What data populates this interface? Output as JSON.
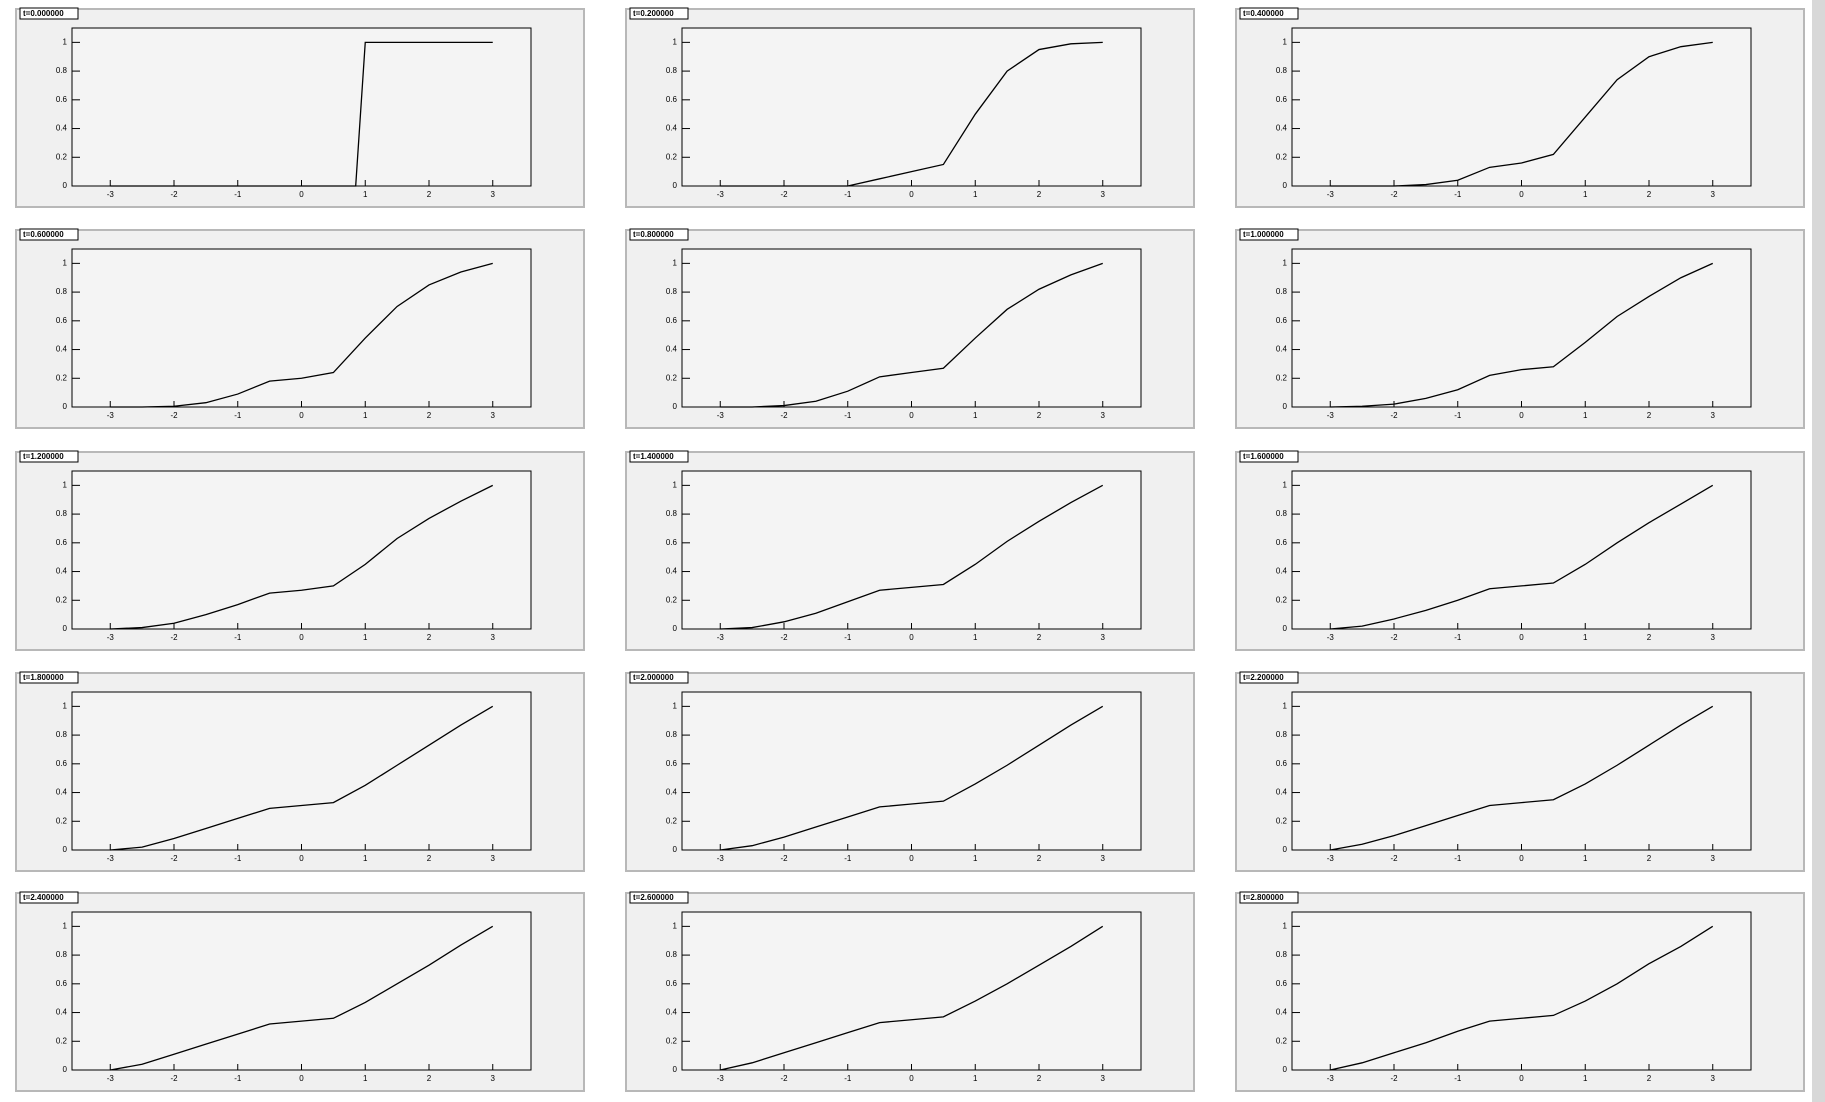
{
  "chart_data": [
    {
      "type": "line",
      "title": "t=0.000000",
      "x": [
        -3,
        0.85,
        1,
        3
      ],
      "values": [
        0,
        0,
        1,
        1
      ],
      "xlim": [
        -3.6,
        3.6
      ],
      "ylim": [
        0,
        1.1
      ],
      "xticks": [
        -3,
        -2,
        -1,
        0,
        1,
        2,
        3
      ],
      "yticks": [
        0,
        0.2,
        0.4,
        0.6,
        0.8,
        1
      ],
      "color": "#000000"
    },
    {
      "type": "line",
      "title": "t=0.200000",
      "x": [
        -3,
        -2.5,
        -2,
        -1.5,
        -1,
        -0.5,
        0,
        0.5,
        1,
        1.5,
        2,
        2.5,
        3
      ],
      "values": [
        0,
        0,
        0,
        0,
        0,
        0.05,
        0.1,
        0.15,
        0.5,
        0.8,
        0.95,
        0.99,
        1
      ],
      "xlim": [
        -3.6,
        3.6
      ],
      "ylim": [
        0,
        1.1
      ],
      "xticks": [
        -3,
        -2,
        -1,
        0,
        1,
        2,
        3
      ],
      "yticks": [
        0,
        0.2,
        0.4,
        0.6,
        0.8,
        1
      ],
      "color": "#000000"
    },
    {
      "type": "line",
      "title": "t=0.400000",
      "x": [
        -3,
        -2.5,
        -2,
        -1.5,
        -1,
        -0.5,
        0,
        0.5,
        1,
        1.5,
        2,
        2.5,
        3
      ],
      "values": [
        0,
        0,
        0,
        0.01,
        0.04,
        0.13,
        0.16,
        0.22,
        0.48,
        0.74,
        0.9,
        0.97,
        1
      ],
      "xlim": [
        -3.6,
        3.6
      ],
      "ylim": [
        0,
        1.1
      ],
      "xticks": [
        -3,
        -2,
        -1,
        0,
        1,
        2,
        3
      ],
      "yticks": [
        0,
        0.2,
        0.4,
        0.6,
        0.8,
        1
      ],
      "color": "#000000"
    },
    {
      "type": "line",
      "title": "t=0.600000",
      "x": [
        -3,
        -2.5,
        -2,
        -1.5,
        -1,
        -0.5,
        0,
        0.5,
        1,
        1.5,
        2,
        2.5,
        3
      ],
      "values": [
        0,
        0,
        0.005,
        0.03,
        0.09,
        0.18,
        0.2,
        0.24,
        0.48,
        0.7,
        0.85,
        0.94,
        1
      ],
      "xlim": [
        -3.6,
        3.6
      ],
      "ylim": [
        0,
        1.1
      ],
      "xticks": [
        -3,
        -2,
        -1,
        0,
        1,
        2,
        3
      ],
      "yticks": [
        0,
        0.2,
        0.4,
        0.6,
        0.8,
        1
      ],
      "color": "#000000"
    },
    {
      "type": "line",
      "title": "t=0.800000",
      "x": [
        -3,
        -2.5,
        -2,
        -1.5,
        -1,
        -0.5,
        0,
        0.5,
        1,
        1.5,
        2,
        2.5,
        3
      ],
      "values": [
        0,
        0,
        0.01,
        0.04,
        0.11,
        0.21,
        0.24,
        0.27,
        0.48,
        0.68,
        0.82,
        0.92,
        1
      ],
      "xlim": [
        -3.6,
        3.6
      ],
      "ylim": [
        0,
        1.1
      ],
      "xticks": [
        -3,
        -2,
        -1,
        0,
        1,
        2,
        3
      ],
      "yticks": [
        0,
        0.2,
        0.4,
        0.6,
        0.8,
        1
      ],
      "color": "#000000"
    },
    {
      "type": "line",
      "title": "t=1.000000",
      "x": [
        -3,
        -2.5,
        -2,
        -1.5,
        -1,
        -0.5,
        0,
        0.5,
        1,
        1.5,
        2,
        2.5,
        3
      ],
      "values": [
        0,
        0.005,
        0.02,
        0.06,
        0.12,
        0.22,
        0.26,
        0.28,
        0.45,
        0.63,
        0.77,
        0.9,
        1
      ],
      "xlim": [
        -3.6,
        3.6
      ],
      "ylim": [
        0,
        1.1
      ],
      "xticks": [
        -3,
        -2,
        -1,
        0,
        1,
        2,
        3
      ],
      "yticks": [
        0,
        0.2,
        0.4,
        0.6,
        0.8,
        1
      ],
      "color": "#000000"
    },
    {
      "type": "line",
      "title": "t=1.200000",
      "x": [
        -3,
        -2.5,
        -2,
        -1.5,
        -1,
        -0.5,
        0,
        0.5,
        1,
        1.5,
        2,
        2.5,
        3
      ],
      "values": [
        0,
        0.01,
        0.04,
        0.1,
        0.17,
        0.25,
        0.27,
        0.3,
        0.45,
        0.63,
        0.77,
        0.89,
        1
      ],
      "xlim": [
        -3.6,
        3.6
      ],
      "ylim": [
        0,
        1.1
      ],
      "xticks": [
        -3,
        -2,
        -1,
        0,
        1,
        2,
        3
      ],
      "yticks": [
        0,
        0.2,
        0.4,
        0.6,
        0.8,
        1
      ],
      "color": "#000000"
    },
    {
      "type": "line",
      "title": "t=1.400000",
      "x": [
        -3,
        -2.5,
        -2,
        -1.5,
        -1,
        -0.5,
        0,
        0.5,
        1,
        1.5,
        2,
        2.5,
        3
      ],
      "values": [
        0,
        0.01,
        0.05,
        0.11,
        0.19,
        0.27,
        0.29,
        0.31,
        0.45,
        0.61,
        0.75,
        0.88,
        1
      ],
      "xlim": [
        -3.6,
        3.6
      ],
      "ylim": [
        0,
        1.1
      ],
      "xticks": [
        -3,
        -2,
        -1,
        0,
        1,
        2,
        3
      ],
      "yticks": [
        0,
        0.2,
        0.4,
        0.6,
        0.8,
        1
      ],
      "color": "#000000"
    },
    {
      "type": "line",
      "title": "t=1.600000",
      "x": [
        -3,
        -2.5,
        -2,
        -1.5,
        -1,
        -0.5,
        0,
        0.5,
        1,
        1.5,
        2,
        2.5,
        3
      ],
      "values": [
        0,
        0.02,
        0.07,
        0.13,
        0.2,
        0.28,
        0.3,
        0.32,
        0.45,
        0.6,
        0.74,
        0.87,
        1
      ],
      "xlim": [
        -3.6,
        3.6
      ],
      "ylim": [
        0,
        1.1
      ],
      "xticks": [
        -3,
        -2,
        -1,
        0,
        1,
        2,
        3
      ],
      "yticks": [
        0,
        0.2,
        0.4,
        0.6,
        0.8,
        1
      ],
      "color": "#000000"
    },
    {
      "type": "line",
      "title": "t=1.800000",
      "x": [
        -3,
        -2.5,
        -2,
        -1.5,
        -1,
        -0.5,
        0,
        0.5,
        1,
        1.5,
        2,
        2.5,
        3
      ],
      "values": [
        0,
        0.02,
        0.08,
        0.15,
        0.22,
        0.29,
        0.31,
        0.33,
        0.45,
        0.59,
        0.73,
        0.87,
        1
      ],
      "xlim": [
        -3.6,
        3.6
      ],
      "ylim": [
        0,
        1.1
      ],
      "xticks": [
        -3,
        -2,
        -1,
        0,
        1,
        2,
        3
      ],
      "yticks": [
        0,
        0.2,
        0.4,
        0.6,
        0.8,
        1
      ],
      "color": "#000000"
    },
    {
      "type": "line",
      "title": "t=2.000000",
      "x": [
        -3,
        -2.5,
        -2,
        -1.5,
        -1,
        -0.5,
        0,
        0.5,
        1,
        1.5,
        2,
        2.5,
        3
      ],
      "values": [
        0,
        0.03,
        0.09,
        0.16,
        0.23,
        0.3,
        0.32,
        0.34,
        0.46,
        0.59,
        0.73,
        0.87,
        1
      ],
      "xlim": [
        -3.6,
        3.6
      ],
      "ylim": [
        0,
        1.1
      ],
      "xticks": [
        -3,
        -2,
        -1,
        0,
        1,
        2,
        3
      ],
      "yticks": [
        0,
        0.2,
        0.4,
        0.6,
        0.8,
        1
      ],
      "color": "#000000"
    },
    {
      "type": "line",
      "title": "t=2.200000",
      "x": [
        -3,
        -2.5,
        -2,
        -1.5,
        -1,
        -0.5,
        0,
        0.5,
        1,
        1.5,
        2,
        2.5,
        3
      ],
      "values": [
        0,
        0.04,
        0.1,
        0.17,
        0.24,
        0.31,
        0.33,
        0.35,
        0.46,
        0.59,
        0.73,
        0.87,
        1
      ],
      "xlim": [
        -3.6,
        3.6
      ],
      "ylim": [
        0,
        1.1
      ],
      "xticks": [
        -3,
        -2,
        -1,
        0,
        1,
        2,
        3
      ],
      "yticks": [
        0,
        0.2,
        0.4,
        0.6,
        0.8,
        1
      ],
      "color": "#000000"
    },
    {
      "type": "line",
      "title": "t=2.400000",
      "x": [
        -3,
        -2.5,
        -2,
        -1.5,
        -1,
        -0.5,
        0,
        0.5,
        1,
        1.5,
        2,
        2.5,
        3
      ],
      "values": [
        0,
        0.04,
        0.11,
        0.18,
        0.25,
        0.32,
        0.34,
        0.36,
        0.47,
        0.6,
        0.73,
        0.87,
        1
      ],
      "xlim": [
        -3.6,
        3.6
      ],
      "ylim": [
        0,
        1.1
      ],
      "xticks": [
        -3,
        -2,
        -1,
        0,
        1,
        2,
        3
      ],
      "yticks": [
        0,
        0.2,
        0.4,
        0.6,
        0.8,
        1
      ],
      "color": "#000000"
    },
    {
      "type": "line",
      "title": "t=2.600000",
      "x": [
        -3,
        -2.5,
        -2,
        -1.5,
        -1,
        -0.5,
        0,
        0.5,
        1,
        1.5,
        2,
        2.5,
        3
      ],
      "values": [
        0,
        0.05,
        0.12,
        0.19,
        0.26,
        0.33,
        0.35,
        0.37,
        0.48,
        0.6,
        0.73,
        0.86,
        1
      ],
      "xlim": [
        -3.6,
        3.6
      ],
      "ylim": [
        0,
        1.1
      ],
      "xticks": [
        -3,
        -2,
        -1,
        0,
        1,
        2,
        3
      ],
      "yticks": [
        0,
        0.2,
        0.4,
        0.6,
        0.8,
        1
      ],
      "color": "#000000"
    },
    {
      "type": "line",
      "title": "t=2.800000",
      "x": [
        -3,
        -2.5,
        -2,
        -1.5,
        -1,
        -0.5,
        0,
        0.5,
        1,
        1.5,
        2,
        2.5,
        3
      ],
      "values": [
        0,
        0.05,
        0.12,
        0.19,
        0.27,
        0.34,
        0.36,
        0.38,
        0.48,
        0.6,
        0.74,
        0.86,
        1
      ],
      "xlim": [
        -3.6,
        3.6
      ],
      "ylim": [
        0,
        1.1
      ],
      "xticks": [
        -3,
        -2,
        -1,
        0,
        1,
        2,
        3
      ],
      "yticks": [
        0,
        0.2,
        0.4,
        0.6,
        0.8,
        1
      ],
      "color": "#000000"
    }
  ]
}
